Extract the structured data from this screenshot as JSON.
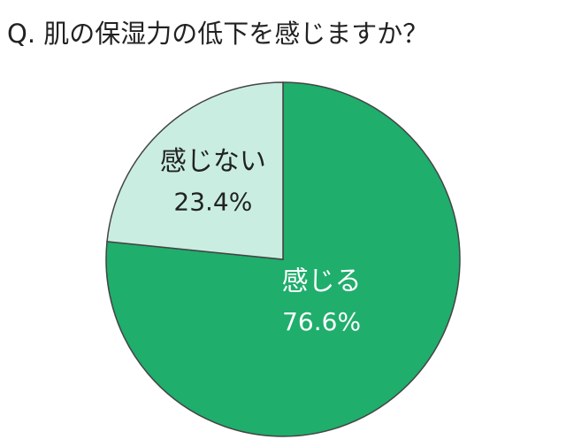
{
  "chart_data": {
    "type": "pie",
    "title": "Q. 肌の保湿力の低下を感じますか？",
    "categories": [
      "感じる",
      "感じない"
    ],
    "values": [
      76.6,
      23.4
    ],
    "value_labels": [
      "76.6%",
      "23.4%"
    ],
    "colors": [
      "#1fae6c",
      "#c9eee1"
    ]
  }
}
